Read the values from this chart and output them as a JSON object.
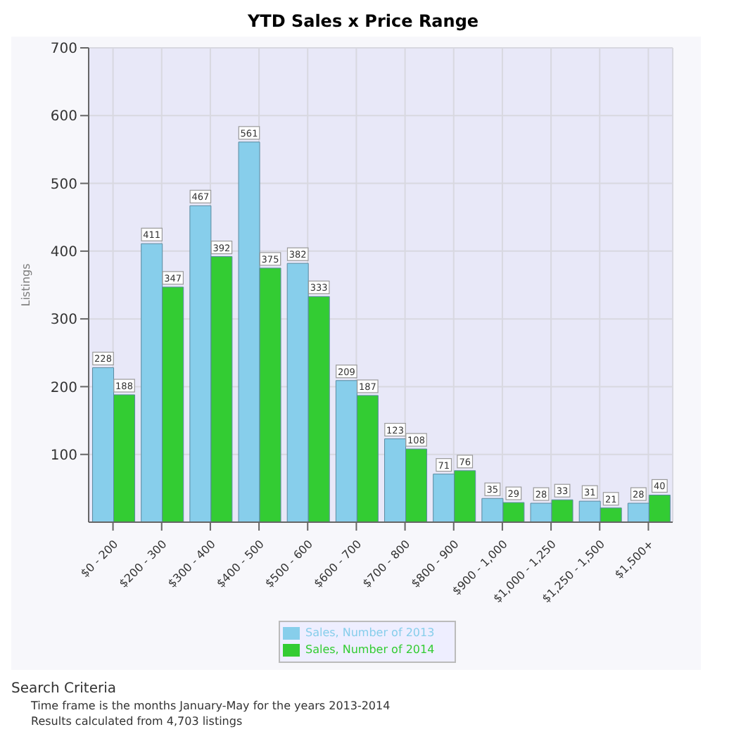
{
  "chart_data": {
    "type": "bar",
    "title": "YTD Sales x Price Range",
    "ylabel": "Listings",
    "categories": [
      "$0 - 200",
      "$200 - 300",
      "$300 - 400",
      "$400 - 500",
      "$500 - 600",
      "$600 - 700",
      "$700 - 800",
      "$800 - 900",
      "$900 - 1,000",
      "$1,000 - 1,250",
      "$1,250 - 1,500",
      "$1,500+"
    ],
    "series": [
      {
        "name": "Sales, Number of 2013",
        "color": "#87ceeb",
        "values": [
          228,
          411,
          467,
          561,
          382,
          209,
          123,
          71,
          35,
          28,
          31,
          28
        ]
      },
      {
        "name": "Sales, Number of 2014",
        "color": "#33cc33",
        "values": [
          188,
          347,
          392,
          375,
          333,
          187,
          108,
          76,
          29,
          33,
          21,
          40
        ]
      }
    ],
    "ylim": [
      0,
      700
    ],
    "yticks": [
      100,
      200,
      300,
      400,
      500,
      600,
      700
    ],
    "grid": true,
    "legend": "bottom",
    "data_labels": true,
    "annotations": [
      "Search Criteria",
      "Time frame is the months January-May for the years 2013-2014",
      "Results calculated from 4,703 listings"
    ]
  }
}
